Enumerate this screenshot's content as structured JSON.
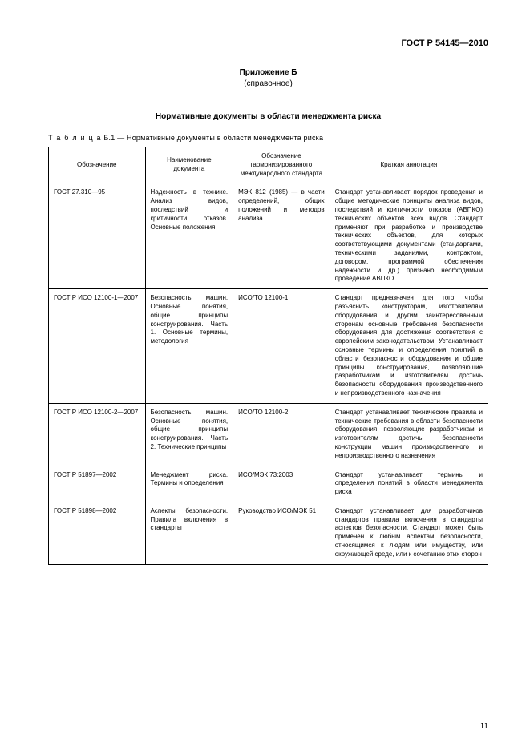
{
  "header": {
    "doc_code": "ГОСТ Р 54145—2010"
  },
  "appendix": {
    "title": "Приложение Б",
    "note": "(справочное)"
  },
  "section_title": "Нормативные документы в области менеджмента риска",
  "table_caption": {
    "prefix": "Т а б л и ц а",
    "rest": "  Б.1 — Нормативные документы в области менеджмента риска"
  },
  "columns": {
    "c1": "Обозначение",
    "c2": "Наименование документа",
    "c3": "Обозначение гармонизированного международного стандарта",
    "c4": "Краткая аннотация"
  },
  "rows": [
    {
      "code": "ГОСТ 27.310—95",
      "name": "Надежность в технике. Анализ видов, последствий и критичности отказов. Основные положения",
      "intl": "МЭК 812 (1985) — в части определений, общих положений и методов анализа",
      "annotation": "Стандарт устанавливает порядок проведения и общие методические принципы анализа видов, последствий и критичности отказов (АВПКО) технических объектов всех видов. Стандарт применяют при разработке и производстве технических объектов, для которых соответствующими документами (стандартами, техническими заданиями, контрактом, договором, программой обеспечения надежности и др.) признано необходимым проведение АВПКО"
    },
    {
      "code": "ГОСТ Р ИСО 12100-1—2007",
      "name": "Безопасность машин. Основные понятия, общие принципы конструирования. Часть 1. Основные термины, методология",
      "intl": "ИСО/ТО 12100-1",
      "annotation": "Стандарт предназначен для того, чтобы разъяснить конструкторам, изготовителям оборудования и другим заинтересованным сторонам основные требования безопасности оборудования для достижения соответствия с европейским законодательством. Устанавливает основные термины и определения понятий в области безопасности оборудования и общие принципы конструирования, позволяющие разработчикам и изготовителям достичь безопасности оборудования производственного и непроизводственного назначения"
    },
    {
      "code": "ГОСТ Р ИСО 12100-2—2007",
      "name": "Безопасность машин. Основные понятия, общие принципы конструирования. Часть 2. Технические принципы",
      "intl": "ИСО/ТО 12100-2",
      "annotation": "Стандарт устанавливает технические правила и технические требования в области безопасности оборудования, позволяющие разработчикам и изготовителям достичь безопасности конструкции машин производственного и непроизводственного назначения"
    },
    {
      "code": "ГОСТ Р 51897—2002",
      "name": "Менеджмент риска. Термины и определения",
      "intl": "ИСО/МЭК 73:2003",
      "annotation": "Стандарт устанавливает термины и определения понятий в области менеджмента риска"
    },
    {
      "code": "ГОСТ Р 51898—2002",
      "name": "Аспекты безопасности. Правила включения в стандарты",
      "intl": "Руководство ИСО/МЭК 51",
      "annotation": "Стандарт устанавливает для разработчиков стандартов правила включения в стандарты аспектов безопасности. Стандарт может быть применен к любым аспектам безопасности, относящимся к людям или имуществу, или окружающей среде, или к сочетанию этих сторон"
    }
  ],
  "page_number": "11"
}
